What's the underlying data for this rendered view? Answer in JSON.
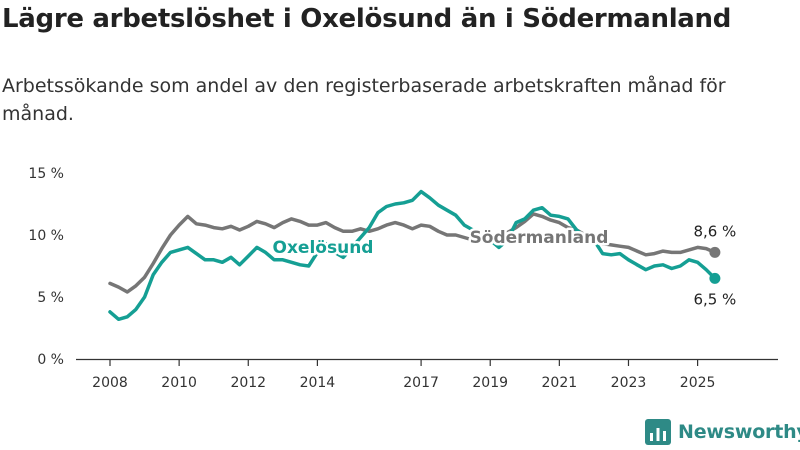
{
  "header": {
    "title": "Lägre arbetslöshet i Oxelösund än i Södermanland",
    "subtitle": "Arbetssökande som andel av den registerbaserade arbetskraften månad för månad."
  },
  "brand": {
    "name": "Newsworthy",
    "icon": "bar-chart-logo-icon",
    "color": "#2e8a86"
  },
  "chart_data": {
    "type": "line",
    "ylim": [
      0,
      15
    ],
    "xlim": [
      2008,
      2026.4
    ],
    "y_ticks": [
      {
        "value": 0,
        "label": "0 %"
      },
      {
        "value": 5,
        "label": "5 %"
      },
      {
        "value": 10,
        "label": "10 %"
      },
      {
        "value": 15,
        "label": "15 %"
      }
    ],
    "x_ticks": [
      {
        "value": 2008,
        "label": "2008"
      },
      {
        "value": 2010,
        "label": "2010"
      },
      {
        "value": 2012,
        "label": "2012"
      },
      {
        "value": 2014,
        "label": "2014"
      },
      {
        "value": 2017,
        "label": "2017"
      },
      {
        "value": 2019,
        "label": "2019"
      },
      {
        "value": 2021,
        "label": "2021"
      },
      {
        "value": 2023,
        "label": "2023"
      },
      {
        "value": 2025,
        "label": "2025"
      }
    ],
    "grid": false,
    "series": [
      {
        "name": "Södermanland",
        "color": "#767676",
        "end_label": "8,6 %",
        "points": [
          [
            2008.0,
            6.1
          ],
          [
            2008.25,
            5.8
          ],
          [
            2008.5,
            5.4
          ],
          [
            2008.75,
            5.9
          ],
          [
            2009.0,
            6.6
          ],
          [
            2009.25,
            7.7
          ],
          [
            2009.5,
            8.9
          ],
          [
            2009.75,
            10.0
          ],
          [
            2010.0,
            10.8
          ],
          [
            2010.25,
            11.5
          ],
          [
            2010.5,
            10.9
          ],
          [
            2010.75,
            10.8
          ],
          [
            2011.0,
            10.6
          ],
          [
            2011.25,
            10.5
          ],
          [
            2011.5,
            10.7
          ],
          [
            2011.75,
            10.4
          ],
          [
            2012.0,
            10.7
          ],
          [
            2012.25,
            11.1
          ],
          [
            2012.5,
            10.9
          ],
          [
            2012.75,
            10.6
          ],
          [
            2013.0,
            11.0
          ],
          [
            2013.25,
            11.3
          ],
          [
            2013.5,
            11.1
          ],
          [
            2013.75,
            10.8
          ],
          [
            2014.0,
            10.8
          ],
          [
            2014.25,
            11.0
          ],
          [
            2014.5,
            10.6
          ],
          [
            2014.75,
            10.3
          ],
          [
            2015.0,
            10.3
          ],
          [
            2015.25,
            10.5
          ],
          [
            2015.5,
            10.3
          ],
          [
            2015.75,
            10.5
          ],
          [
            2016.0,
            10.8
          ],
          [
            2016.25,
            11.0
          ],
          [
            2016.5,
            10.8
          ],
          [
            2016.75,
            10.5
          ],
          [
            2017.0,
            10.8
          ],
          [
            2017.25,
            10.7
          ],
          [
            2017.5,
            10.3
          ],
          [
            2017.75,
            10.0
          ],
          [
            2018.0,
            10.0
          ],
          [
            2018.25,
            9.8
          ],
          [
            2018.5,
            9.6
          ],
          [
            2018.75,
            9.8
          ],
          [
            2019.0,
            9.7
          ],
          [
            2019.25,
            9.8
          ],
          [
            2019.5,
            10.2
          ],
          [
            2019.75,
            10.6
          ],
          [
            2020.0,
            11.1
          ],
          [
            2020.25,
            11.7
          ],
          [
            2020.5,
            11.5
          ],
          [
            2020.75,
            11.2
          ],
          [
            2021.0,
            11.0
          ],
          [
            2021.25,
            10.6
          ],
          [
            2021.5,
            10.4
          ],
          [
            2021.75,
            10.0
          ],
          [
            2022.0,
            9.6
          ],
          [
            2022.25,
            9.3
          ],
          [
            2022.5,
            9.2
          ],
          [
            2022.75,
            9.1
          ],
          [
            2023.0,
            9.0
          ],
          [
            2023.25,
            8.7
          ],
          [
            2023.5,
            8.4
          ],
          [
            2023.75,
            8.5
          ],
          [
            2024.0,
            8.7
          ],
          [
            2024.25,
            8.6
          ],
          [
            2024.5,
            8.6
          ],
          [
            2024.75,
            8.8
          ],
          [
            2025.0,
            9.0
          ],
          [
            2025.25,
            8.9
          ],
          [
            2025.5,
            8.6
          ]
        ]
      },
      {
        "name": "Oxelösund",
        "color": "#159f94",
        "end_label": "6,5 %",
        "points": [
          [
            2008.0,
            3.8
          ],
          [
            2008.25,
            3.2
          ],
          [
            2008.5,
            3.4
          ],
          [
            2008.75,
            4.0
          ],
          [
            2009.0,
            5.0
          ],
          [
            2009.25,
            6.8
          ],
          [
            2009.5,
            7.8
          ],
          [
            2009.75,
            8.6
          ],
          [
            2010.0,
            8.8
          ],
          [
            2010.25,
            9.0
          ],
          [
            2010.5,
            8.5
          ],
          [
            2010.75,
            8.0
          ],
          [
            2011.0,
            8.0
          ],
          [
            2011.25,
            7.8
          ],
          [
            2011.5,
            8.2
          ],
          [
            2011.75,
            7.6
          ],
          [
            2012.0,
            8.3
          ],
          [
            2012.25,
            9.0
          ],
          [
            2012.5,
            8.6
          ],
          [
            2012.75,
            8.0
          ],
          [
            2013.0,
            8.0
          ],
          [
            2013.25,
            7.8
          ],
          [
            2013.5,
            7.6
          ],
          [
            2013.75,
            7.5
          ],
          [
            2014.0,
            8.6
          ],
          [
            2014.25,
            9.3
          ],
          [
            2014.5,
            8.6
          ],
          [
            2014.75,
            8.2
          ],
          [
            2015.0,
            9.0
          ],
          [
            2015.25,
            9.8
          ],
          [
            2015.5,
            10.6
          ],
          [
            2015.75,
            11.8
          ],
          [
            2016.0,
            12.3
          ],
          [
            2016.25,
            12.5
          ],
          [
            2016.5,
            12.6
          ],
          [
            2016.75,
            12.8
          ],
          [
            2017.0,
            13.5
          ],
          [
            2017.25,
            13.0
          ],
          [
            2017.5,
            12.4
          ],
          [
            2017.75,
            12.0
          ],
          [
            2018.0,
            11.6
          ],
          [
            2018.25,
            10.8
          ],
          [
            2018.5,
            10.4
          ],
          [
            2018.75,
            10.0
          ],
          [
            2019.0,
            9.6
          ],
          [
            2019.25,
            9.0
          ],
          [
            2019.5,
            9.6
          ],
          [
            2019.75,
            11.0
          ],
          [
            2020.0,
            11.3
          ],
          [
            2020.25,
            12.0
          ],
          [
            2020.5,
            12.2
          ],
          [
            2020.75,
            11.6
          ],
          [
            2021.0,
            11.5
          ],
          [
            2021.25,
            11.3
          ],
          [
            2021.5,
            10.4
          ],
          [
            2021.75,
            9.8
          ],
          [
            2022.0,
            9.6
          ],
          [
            2022.25,
            8.5
          ],
          [
            2022.5,
            8.4
          ],
          [
            2022.75,
            8.5
          ],
          [
            2023.0,
            8.0
          ],
          [
            2023.25,
            7.6
          ],
          [
            2023.5,
            7.2
          ],
          [
            2023.75,
            7.5
          ],
          [
            2024.0,
            7.6
          ],
          [
            2024.25,
            7.3
          ],
          [
            2024.5,
            7.5
          ],
          [
            2024.75,
            8.0
          ],
          [
            2025.0,
            7.8
          ],
          [
            2025.25,
            7.2
          ],
          [
            2025.5,
            6.5
          ]
        ]
      }
    ]
  }
}
